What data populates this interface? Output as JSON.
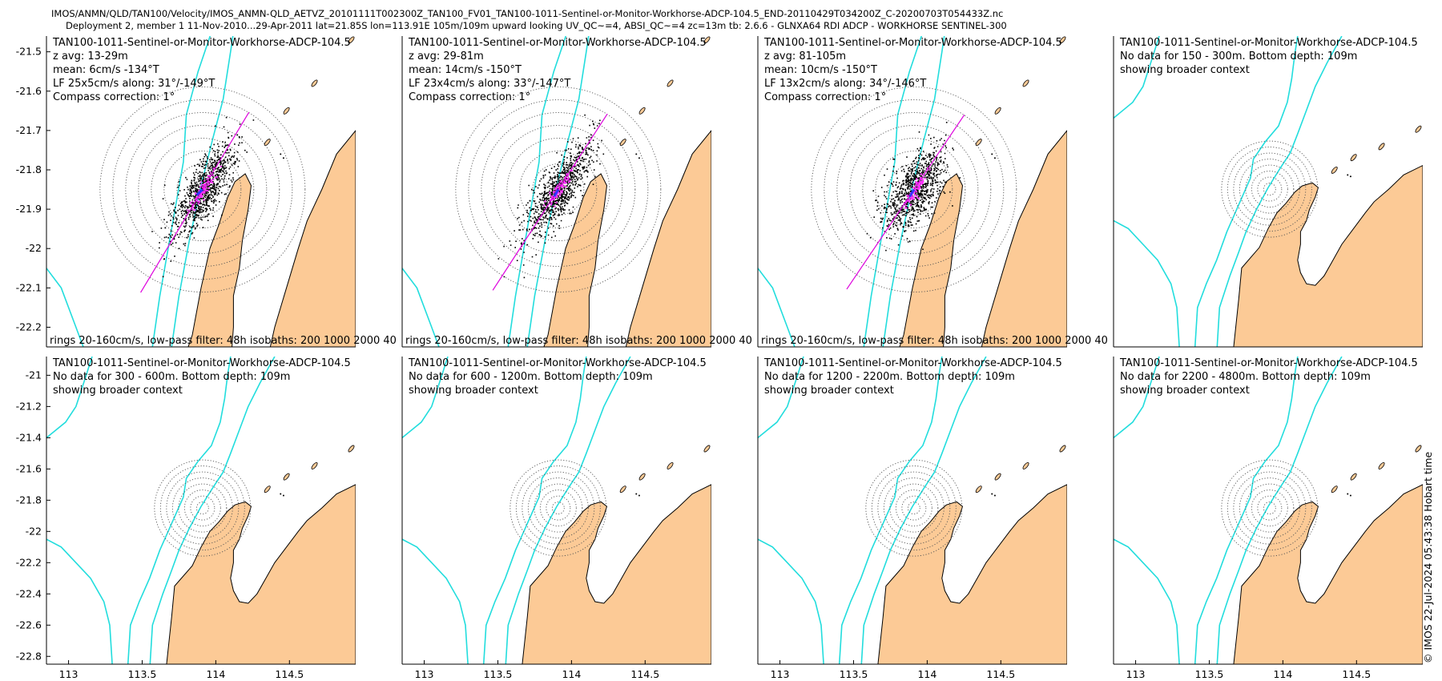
{
  "header": {
    "line1": "IMOS/ANMN/QLD/TAN100/Velocity/IMOS_ANMN-QLD_AETVZ_20101111T002300Z_TAN100_FV01_TAN100-1011-Sentinel-or-Monitor-Workhorse-ADCP-104.5_END-20110429T034200Z_C-20200703T054433Z.nc",
    "line2": "Deployment 2, member 1 11-Nov-2010...29-Apr-2011 lat=21.85S lon=113.91E 105m/109m upward looking UV_QC~=4, ABSI_QC~=4 zc=13m tb: 2.6.6 - GLNXA64 RDI ADCP - WORKHORSE SENTINEL-300"
  },
  "footer": {
    "stamp": "© IMOS 22-Jul-2024 05:43:38 Hobart time"
  },
  "colors": {
    "land": "#fcca96",
    "isobath": "#22dddd",
    "fit_line": "#dd00dd",
    "scatter": "#000000",
    "lowpass": "#ff33ff",
    "mean_vector": "#3333ff",
    "rings": "#555555"
  },
  "chart_data": [
    {
      "type": "scatter",
      "panel": 1,
      "lines": [
        "TAN100-1011-Sentinel-or-Monitor-Workhorse-ADCP-104.5",
        "z avg: 13-29m",
        "mean: 6cm/s -134°T",
        "LF 25x5cm/s along: 31°/-149°T",
        "Compass correction: 1°"
      ],
      "footnote": "rings 20-160cm/s, low-pass filter: 48h isobaths: 200 1000 2000 40",
      "has_data": true,
      "center": [
        113.91,
        -21.85
      ],
      "major_axis_deg": 31,
      "mean_dir_deg": -134,
      "xlim": [
        112.85,
        114.95
      ],
      "ylim": [
        -22.25,
        -21.46
      ],
      "yticks": [
        -21.5,
        -21.6,
        -21.7,
        -21.8,
        -21.9,
        -22,
        -22.1,
        -22.2
      ],
      "ytick_labels": [
        "-21.5",
        "-21.6",
        "-21.7",
        "-21.8",
        "-21.9",
        "-22",
        "-22.1",
        "-22.2"
      ],
      "xticks": [],
      "xtick_labels": []
    },
    {
      "type": "scatter",
      "panel": 2,
      "lines": [
        "TAN100-1011-Sentinel-or-Monitor-Workhorse-ADCP-104.5",
        "z avg: 29-81m",
        "mean: 14cm/s -150°T",
        "LF 23x4cm/s along: 33°/-147°T",
        "Compass correction: 1°"
      ],
      "footnote": "rings 20-160cm/s, low-pass filter: 48h isobaths: 200 1000 2000 40",
      "has_data": true,
      "center": [
        113.91,
        -21.85
      ],
      "major_axis_deg": 33,
      "mean_dir_deg": -150,
      "xlim": [
        112.85,
        114.95
      ],
      "ylim": [
        -22.25,
        -21.46
      ],
      "yticks": [],
      "ytick_labels": [],
      "xticks": [],
      "xtick_labels": []
    },
    {
      "type": "scatter",
      "panel": 3,
      "lines": [
        "TAN100-1011-Sentinel-or-Monitor-Workhorse-ADCP-104.5",
        "z avg: 81-105m",
        "mean: 10cm/s -150°T",
        "LF 13x2cm/s along: 34°/-146°T",
        "Compass correction: 1°"
      ],
      "footnote": "rings 20-160cm/s, low-pass filter: 48h isobaths: 200 1000 2000 40",
      "has_data": true,
      "center": [
        113.91,
        -21.85
      ],
      "major_axis_deg": 34,
      "mean_dir_deg": -150,
      "xlim": [
        112.85,
        114.95
      ],
      "ylim": [
        -22.25,
        -21.46
      ],
      "yticks": [],
      "ytick_labels": [],
      "xticks": [],
      "xtick_labels": []
    },
    {
      "type": "scatter",
      "panel": 4,
      "lines": [
        "TAN100-1011-Sentinel-or-Monitor-Workhorse-ADCP-104.5",
        "No data for 150 - 300m. Bottom depth: 109m",
        "showing broader context"
      ],
      "footnote": "",
      "has_data": false,
      "center": [
        113.91,
        -21.85
      ],
      "xlim": [
        112.85,
        114.95
      ],
      "ylim": [
        -22.85,
        -20.88
      ],
      "yticks": [],
      "ytick_labels": [],
      "xticks": [],
      "xtick_labels": []
    },
    {
      "type": "scatter",
      "panel": 5,
      "lines": [
        "TAN100-1011-Sentinel-or-Monitor-Workhorse-ADCP-104.5",
        "No data for 300 - 600m. Bottom depth: 109m",
        "showing broader context"
      ],
      "footnote": "",
      "has_data": false,
      "center": [
        113.91,
        -21.85
      ],
      "xlim": [
        112.85,
        114.95
      ],
      "ylim": [
        -22.85,
        -20.88
      ],
      "yticks": [
        -21,
        -21.2,
        -21.4,
        -21.6,
        -21.8,
        -22,
        -22.2,
        -22.4,
        -22.6,
        -22.8
      ],
      "ytick_labels": [
        "-21",
        "-21.2",
        "-21.4",
        "-21.6",
        "-21.8",
        "-22",
        "-22.2",
        "-22.4",
        "-22.6",
        "-22.8"
      ],
      "xticks": [
        113,
        113.5,
        114,
        114.5
      ],
      "xtick_labels": [
        "113",
        "113.5",
        "114",
        "114.5"
      ]
    },
    {
      "type": "scatter",
      "panel": 6,
      "lines": [
        "TAN100-1011-Sentinel-or-Monitor-Workhorse-ADCP-104.5",
        "No data for 600 - 1200m. Bottom depth: 109m",
        "showing broader context"
      ],
      "footnote": "",
      "has_data": false,
      "center": [
        113.91,
        -21.85
      ],
      "xlim": [
        112.85,
        114.95
      ],
      "ylim": [
        -22.85,
        -20.88
      ],
      "yticks": [],
      "ytick_labels": [],
      "xticks": [
        113,
        113.5,
        114,
        114.5
      ],
      "xtick_labels": [
        "113",
        "113.5",
        "114",
        "114.5"
      ]
    },
    {
      "type": "scatter",
      "panel": 7,
      "lines": [
        "TAN100-1011-Sentinel-or-Monitor-Workhorse-ADCP-104.5",
        "No data for 1200 - 2200m. Bottom depth: 109m",
        "showing broader context"
      ],
      "footnote": "",
      "has_data": false,
      "center": [
        113.91,
        -21.85
      ],
      "xlim": [
        112.85,
        114.95
      ],
      "ylim": [
        -22.85,
        -20.88
      ],
      "yticks": [],
      "ytick_labels": [],
      "xticks": [
        113,
        113.5,
        114,
        114.5
      ],
      "xtick_labels": [
        "113",
        "113.5",
        "114",
        "114.5"
      ]
    },
    {
      "type": "scatter",
      "panel": 8,
      "lines": [
        "TAN100-1011-Sentinel-or-Monitor-Workhorse-ADCP-104.5",
        "No data for 2200 - 4800m. Bottom depth: 109m",
        "showing broader context"
      ],
      "footnote": "",
      "has_data": false,
      "center": [
        113.91,
        -21.85
      ],
      "xlim": [
        112.85,
        114.95
      ],
      "ylim": [
        -22.85,
        -20.88
      ],
      "yticks": [],
      "ytick_labels": [],
      "xticks": [
        113,
        113.5,
        114,
        114.5
      ],
      "xtick_labels": [
        "113",
        "113.5",
        "114",
        "114.5"
      ]
    }
  ]
}
